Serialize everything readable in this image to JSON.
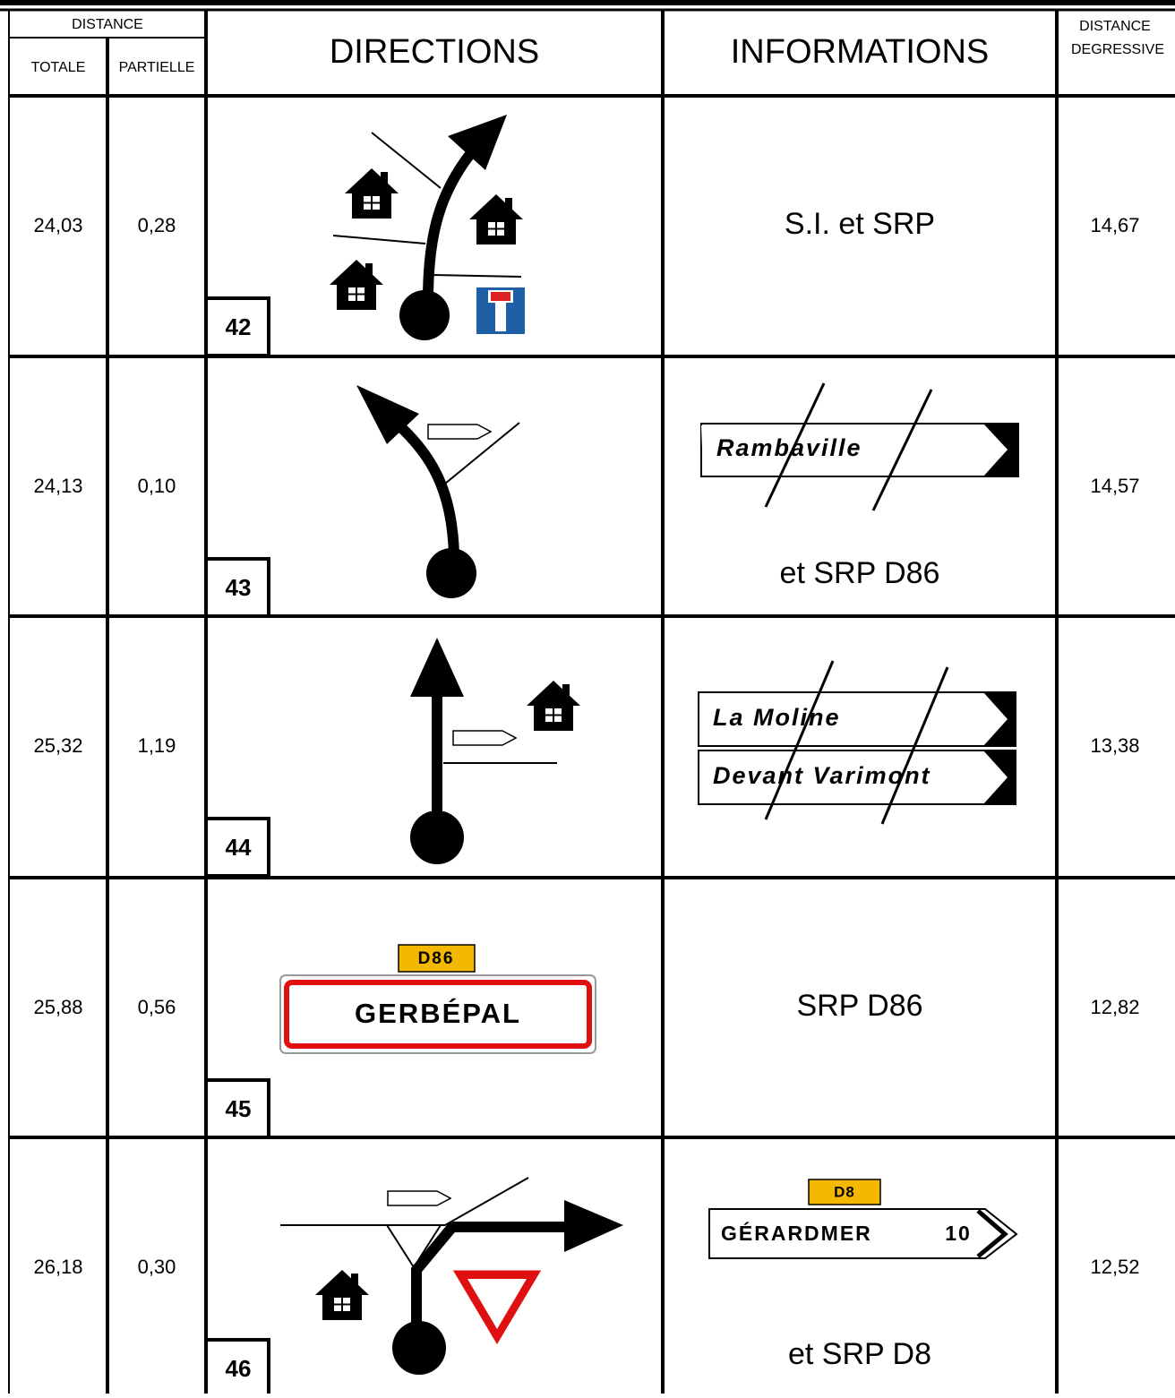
{
  "header": {
    "distance": "DISTANCE",
    "totale": "TOTALE",
    "partielle": "PARTIELLE",
    "directions": "DIRECTIONS",
    "informations": "INFORMATIONS",
    "degressive_1": "DISTANCE",
    "degressive_2": "DEGRESSIVE"
  },
  "rows": [
    {
      "totale": "24,03",
      "partielle": "0,28",
      "step": 42,
      "info": "S.I. et SRP",
      "degressive": "14,67"
    },
    {
      "totale": "24,13",
      "partielle": "0,10",
      "step": 43,
      "info_signs": [
        "Rambaville"
      ],
      "info": "et SRP D86",
      "degressive": "14,57"
    },
    {
      "totale": "25,32",
      "partielle": "1,19",
      "step": 44,
      "info_signs": [
        "La Moline",
        "Devant Varimont"
      ],
      "degressive": "13,38"
    },
    {
      "totale": "25,88",
      "partielle": "0,56",
      "step": 45,
      "direction_sign": {
        "route": "D86",
        "name": "GERBÉPAL"
      },
      "info": "SRP D86",
      "degressive": "12,82"
    },
    {
      "totale": "26,18",
      "partielle": "0,30",
      "step": 46,
      "info_sign": {
        "route": "D8",
        "name": "GÉRARDMER",
        "distance": "10"
      },
      "info": "et SRP D8",
      "degressive": "12,52"
    }
  ]
}
